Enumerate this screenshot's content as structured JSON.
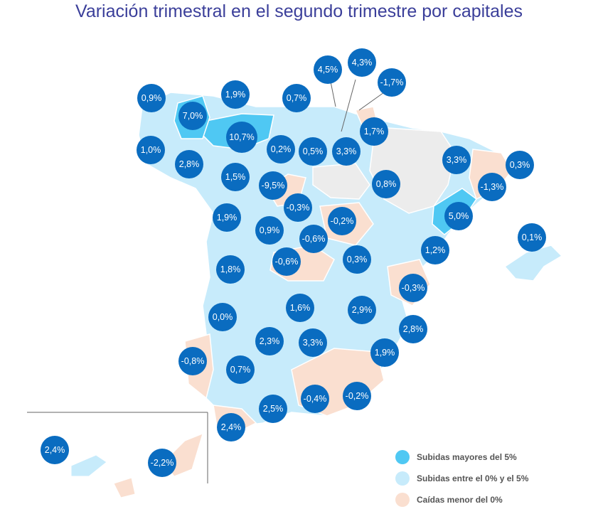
{
  "title": "Variación trimestral en el segundo trimestre por capitales",
  "colors": {
    "high": "#4fc8f3",
    "mid": "#c7ebfb",
    "neg": "#fadfd0",
    "nodata": "#ececec",
    "bubble": "#0a6cc0",
    "title": "#3b3f9a"
  },
  "legend": [
    {
      "label": "Subidas mayores del 5%",
      "color_key": "high"
    },
    {
      "label": "Subidas entre el 0% y el 5%",
      "color_key": "mid"
    },
    {
      "label": "Caídas menor del 0%",
      "color_key": "neg"
    }
  ],
  "provinces": [
    {
      "value": "0,9%",
      "category": "mid"
    },
    {
      "value": "1,9%",
      "category": "mid"
    },
    {
      "value": "0,7%",
      "category": "mid"
    },
    {
      "value": "4,5%",
      "category": "mid"
    },
    {
      "value": "4,3%",
      "category": "mid"
    },
    {
      "value": "-1,7%",
      "category": "neg"
    },
    {
      "value": "7,0%",
      "category": "high"
    },
    {
      "value": "10,7%",
      "category": "high"
    },
    {
      "value": "1,7%",
      "category": "mid"
    },
    {
      "value": "1,0%",
      "category": "mid"
    },
    {
      "value": "0,2%",
      "category": "mid"
    },
    {
      "value": "0,5%",
      "category": "mid"
    },
    {
      "value": "3,3%",
      "category": "mid"
    },
    {
      "value": "3,3%",
      "category": "mid"
    },
    {
      "value": "0,3%",
      "category": "mid"
    },
    {
      "value": "2,8%",
      "category": "mid"
    },
    {
      "value": "1,5%",
      "category": "mid"
    },
    {
      "value": "-9,5%",
      "category": "neg"
    },
    {
      "value": "0,8%",
      "category": "mid"
    },
    {
      "value": "-1,3%",
      "category": "neg"
    },
    {
      "value": "-0,3%",
      "category": "neg"
    },
    {
      "value": "1,9%",
      "category": "mid"
    },
    {
      "value": "0,9%",
      "category": "mid"
    },
    {
      "value": "-0,2%",
      "category": "neg"
    },
    {
      "value": "5,0%",
      "category": "high"
    },
    {
      "value": "-0,6%",
      "category": "neg"
    },
    {
      "value": "0,1%",
      "category": "mid"
    },
    {
      "value": "1,2%",
      "category": "mid"
    },
    {
      "value": "1,8%",
      "category": "mid"
    },
    {
      "value": "-0,6%",
      "category": "neg"
    },
    {
      "value": "0,3%",
      "category": "mid"
    },
    {
      "value": "-0,3%",
      "category": "neg"
    },
    {
      "value": "1,6%",
      "category": "mid"
    },
    {
      "value": "2,9%",
      "category": "mid"
    },
    {
      "value": "0,0%",
      "category": "mid"
    },
    {
      "value": "2,8%",
      "category": "mid"
    },
    {
      "value": "2,3%",
      "category": "mid"
    },
    {
      "value": "3,3%",
      "category": "mid"
    },
    {
      "value": "-0,8%",
      "category": "neg"
    },
    {
      "value": "1,9%",
      "category": "mid"
    },
    {
      "value": "0,7%",
      "category": "mid"
    },
    {
      "value": "-0,4%",
      "category": "neg"
    },
    {
      "value": "-0,2%",
      "category": "neg"
    },
    {
      "value": "2,5%",
      "category": "mid"
    },
    {
      "value": "2,4%",
      "category": "mid"
    },
    {
      "value": "2,4%",
      "category": "mid"
    },
    {
      "value": "-2,2%",
      "category": "neg"
    }
  ]
}
